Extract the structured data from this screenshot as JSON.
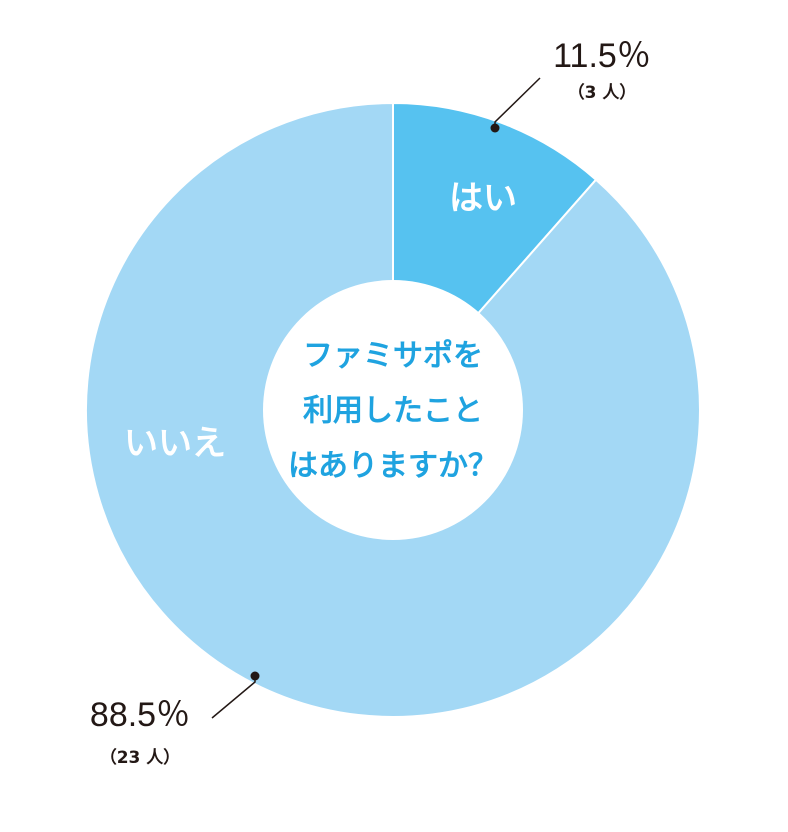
{
  "chart_data": {
    "type": "donut",
    "title_lines": [
      "ファミサポを",
      "利用したこと",
      "はありますか？"
    ],
    "categories": [
      "はい",
      "いいえ"
    ],
    "values": [
      11.5,
      88.5
    ],
    "value_labels": [
      "11.5％",
      "88.5％"
    ],
    "count_labels": [
      "（3 人）",
      "（23 人）"
    ],
    "colors": [
      "#56c2f0",
      "#a3d8f5"
    ]
  }
}
